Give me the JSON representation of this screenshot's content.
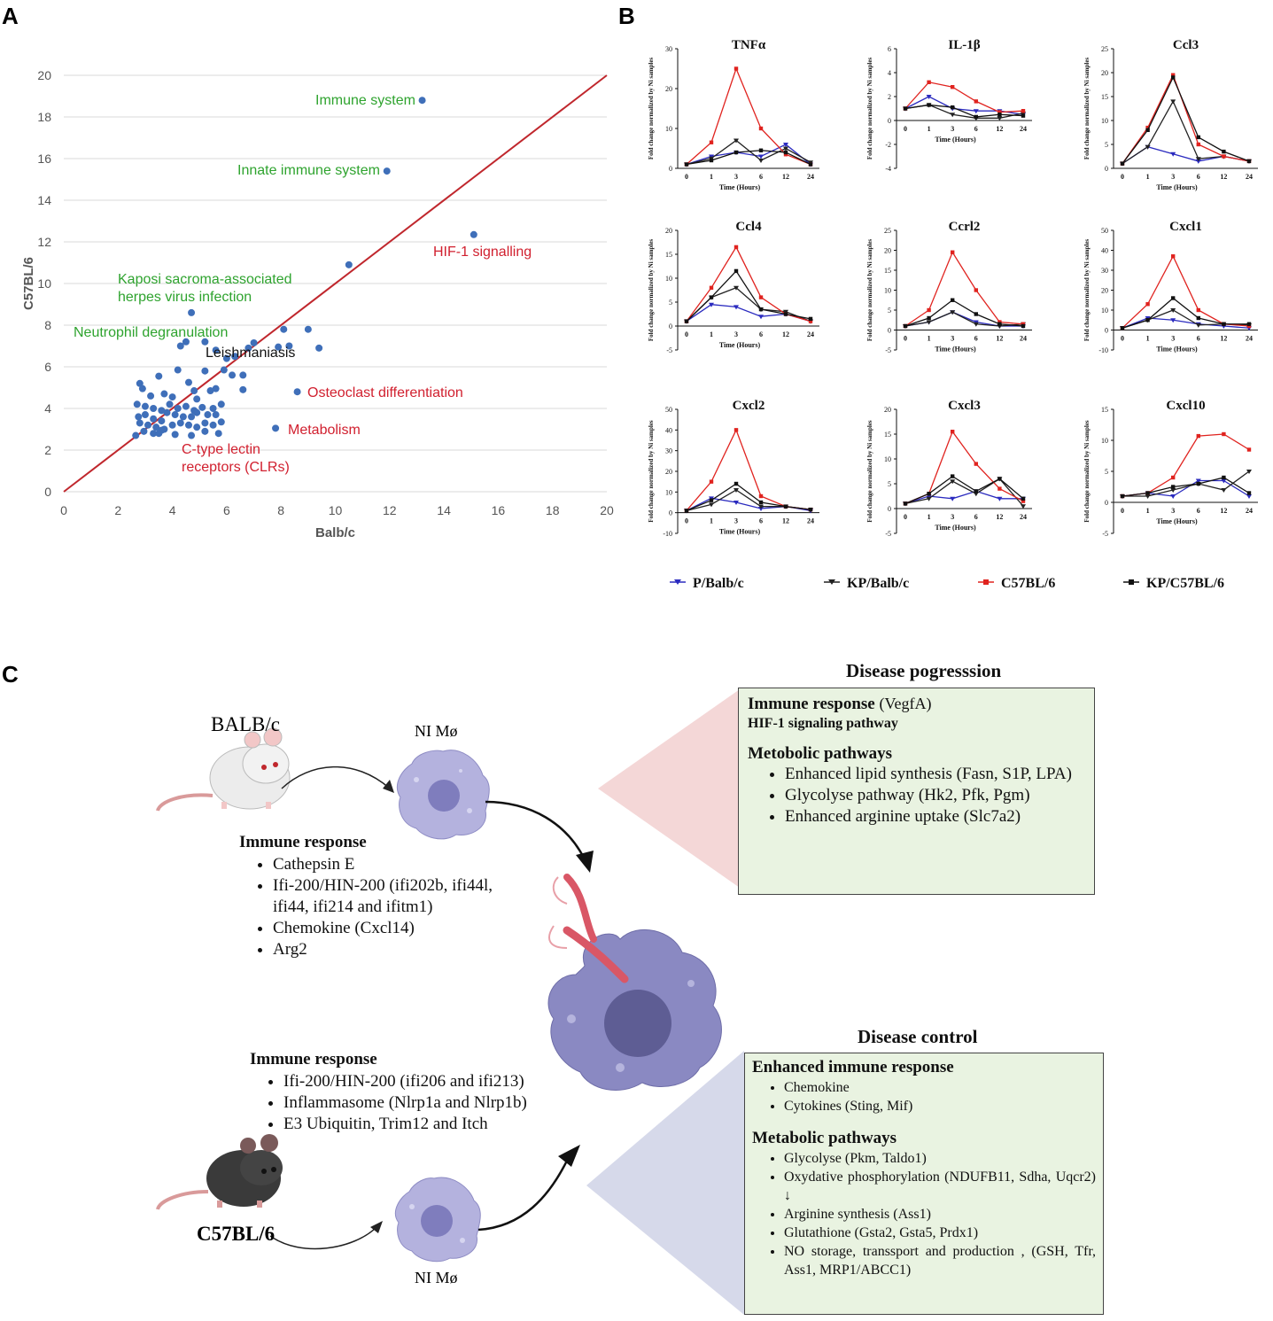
{
  "panels": {
    "a": "A",
    "b": "B",
    "c": "C"
  },
  "chart_data": [
    {
      "type": "scatter",
      "id": "A",
      "xlabel": "Balb/c",
      "ylabel": "C57BL/6",
      "xlim": [
        0,
        20
      ],
      "ylim": [
        0,
        20
      ],
      "xticks": [
        "0",
        "2",
        "4",
        "6",
        "8",
        "10",
        "12",
        "14",
        "16",
        "18",
        "20"
      ],
      "yticks": [
        "0",
        "2",
        "4",
        "6",
        "8",
        "10",
        "12",
        "14",
        "16",
        "18",
        "20"
      ],
      "diagonal": true,
      "point_color": "#3f6fb9",
      "line_color": "#c0272d",
      "points": [
        [
          13.2,
          18.8
        ],
        [
          11.9,
          15.4
        ],
        [
          15.1,
          12.35
        ],
        [
          10.5,
          10.9
        ],
        [
          4.7,
          8.6
        ],
        [
          9.0,
          7.8
        ],
        [
          8.1,
          7.8
        ],
        [
          9.4,
          6.9
        ],
        [
          7.0,
          7.15
        ],
        [
          4.3,
          7.0
        ],
        [
          4.5,
          7.2
        ],
        [
          5.2,
          7.2
        ],
        [
          5.6,
          6.8
        ],
        [
          6.0,
          6.4
        ],
        [
          6.3,
          6.5
        ],
        [
          6.8,
          6.9
        ],
        [
          7.9,
          6.95
        ],
        [
          8.3,
          7.0
        ],
        [
          6.2,
          5.6
        ],
        [
          6.6,
          5.6
        ],
        [
          6.6,
          4.9
        ],
        [
          5.9,
          5.85
        ],
        [
          5.2,
          5.8
        ],
        [
          4.2,
          5.85
        ],
        [
          3.5,
          5.55
        ],
        [
          2.8,
          5.2
        ],
        [
          2.9,
          4.95
        ],
        [
          3.7,
          4.7
        ],
        [
          3.2,
          4.6
        ],
        [
          4.0,
          4.55
        ],
        [
          4.8,
          4.85
        ],
        [
          5.4,
          4.85
        ],
        [
          5.6,
          4.95
        ],
        [
          4.6,
          5.25
        ],
        [
          2.7,
          4.2
        ],
        [
          3.0,
          4.1
        ],
        [
          3.3,
          4.0
        ],
        [
          3.6,
          3.9
        ],
        [
          3.9,
          4.2
        ],
        [
          4.2,
          4.0
        ],
        [
          4.5,
          4.1
        ],
        [
          4.8,
          3.9
        ],
        [
          5.1,
          4.05
        ],
        [
          5.5,
          4.0
        ],
        [
          5.8,
          4.2
        ],
        [
          2.75,
          3.6
        ],
        [
          3.0,
          3.7
        ],
        [
          3.3,
          3.5
        ],
        [
          3.6,
          3.4
        ],
        [
          3.8,
          3.8
        ],
        [
          4.1,
          3.7
        ],
        [
          4.4,
          3.6
        ],
        [
          4.7,
          3.6
        ],
        [
          4.9,
          3.8
        ],
        [
          5.3,
          3.7
        ],
        [
          5.6,
          3.7
        ],
        [
          2.8,
          3.3
        ],
        [
          3.1,
          3.2
        ],
        [
          3.4,
          3.1
        ],
        [
          3.7,
          3.0
        ],
        [
          4.0,
          3.2
        ],
        [
          4.3,
          3.3
        ],
        [
          4.6,
          3.2
        ],
        [
          4.9,
          3.1
        ],
        [
          5.2,
          3.3
        ],
        [
          5.5,
          3.2
        ],
        [
          2.65,
          2.7
        ],
        [
          2.95,
          2.9
        ],
        [
          3.3,
          2.8
        ],
        [
          3.6,
          2.95
        ],
        [
          4.1,
          2.75
        ],
        [
          4.7,
          2.7
        ],
        [
          5.2,
          2.9
        ],
        [
          5.7,
          2.8
        ],
        [
          3.5,
          2.8
        ],
        [
          7.8,
          3.05
        ],
        [
          8.6,
          4.8
        ],
        [
          5.8,
          3.35
        ],
        [
          4.9,
          4.45
        ]
      ],
      "annotations": [
        {
          "text": "Immune system",
          "color": "#2ea32e"
        },
        {
          "text": "Innate immune system",
          "color": "#2ea32e"
        },
        {
          "text": "HIF-1 signalling",
          "color": "#d1202f"
        },
        {
          "text": "Kaposi sacroma-associated",
          "color": "#2ea32e"
        },
        {
          "text": "herpes virus infection",
          "color": "#2ea32e"
        },
        {
          "text": "Neutrophil degranulation",
          "color": "#2ea32e"
        },
        {
          "text": "Leishmaniasis",
          "color": "#111111"
        },
        {
          "text": "Osteoclast differentiation",
          "color": "#d1202f"
        },
        {
          "text": "Metabolism",
          "color": "#d1202f"
        },
        {
          "text": "C-type lectin",
          "color": "#d1202f"
        },
        {
          "text": "receptors (CLRs)",
          "color": "#d1202f"
        }
      ]
    },
    {
      "type": "line",
      "id": "B",
      "x": [
        "0",
        "1",
        "3",
        "6",
        "12",
        "24"
      ],
      "xlabel": "Time (Hours)",
      "ylabel": "Fold change normalized by Ni samples",
      "series_names": [
        "P/Balb/c",
        "KP/Balb/c",
        "C57BL/6",
        "KP/C57BL/6"
      ],
      "series_colors": [
        "#2b2bbf",
        "#222222",
        "#e0231f",
        "#111111"
      ],
      "subplots": [
        {
          "title": "TNFα",
          "ylim": [
            0,
            30
          ],
          "yticks": [
            "0",
            "10",
            "20",
            "30"
          ],
          "series": [
            [
              1,
              3,
              4,
              3,
              6,
              1
            ],
            [
              1,
              2.5,
              7,
              2,
              5,
              1.5
            ],
            [
              1,
              6.5,
              25,
              10,
              3.5,
              1
            ],
            [
              1,
              2,
              4,
              4.5,
              4,
              1
            ]
          ]
        },
        {
          "title": "IL-1β",
          "ylim": [
            -4,
            6
          ],
          "yticks": [
            "-4",
            "-2",
            "0",
            "2",
            "4",
            "6"
          ],
          "series": [
            [
              1,
              2,
              1,
              0.8,
              0.8,
              0.5
            ],
            [
              1,
              1.3,
              0.5,
              0.2,
              0.2,
              0.6
            ],
            [
              1,
              3.2,
              2.8,
              1.6,
              0.7,
              0.8
            ],
            [
              1,
              1.3,
              1.1,
              0.3,
              0.5,
              0.4
            ]
          ]
        },
        {
          "title": "Ccl3",
          "ylim": [
            0,
            25
          ],
          "yticks": [
            "0",
            "5",
            "10",
            "15",
            "20",
            "25"
          ],
          "series": [
            [
              1,
              4.5,
              3,
              1.5,
              2.5,
              1.5
            ],
            [
              1,
              4.5,
              14,
              2,
              2.5,
              1.5
            ],
            [
              1,
              8.5,
              19.5,
              5,
              2.5,
              1.5
            ],
            [
              1,
              8,
              19,
              6.5,
              3.5,
              1.5
            ]
          ]
        },
        {
          "title": "Ccl4",
          "ylim": [
            -5,
            20
          ],
          "yticks": [
            "-5",
            "0",
            "5",
            "10",
            "15",
            "20"
          ],
          "series": [
            [
              1,
              4.5,
              4,
              2,
              2.5,
              1
            ],
            [
              1,
              6,
              8,
              3.5,
              3,
              1
            ],
            [
              1,
              8,
              16.5,
              6,
              2.5,
              1
            ],
            [
              1,
              6,
              11.5,
              3.5,
              2.5,
              1.5
            ]
          ]
        },
        {
          "title": "Ccrl2",
          "ylim": [
            -5,
            25
          ],
          "yticks": [
            "-5",
            "0",
            "5",
            "10",
            "15",
            "20",
            "25"
          ],
          "series": [
            [
              1,
              2,
              4.5,
              2,
              1,
              1
            ],
            [
              1,
              2,
              4.5,
              1.5,
              1,
              1.5
            ],
            [
              1,
              5,
              19.5,
              10,
              2,
              1.5
            ],
            [
              1,
              3,
              7.5,
              4,
              1.5,
              1
            ]
          ]
        },
        {
          "title": "Cxcl1",
          "ylim": [
            -10,
            50
          ],
          "yticks": [
            "-10",
            "0",
            "10",
            "20",
            "30",
            "40",
            "50"
          ],
          "series": [
            [
              1,
              6,
              5,
              3,
              2,
              1
            ],
            [
              1,
              5,
              10,
              2.5,
              3,
              2.5
            ],
            [
              1,
              13,
              37,
              10,
              3,
              2
            ],
            [
              1,
              5,
              16,
              6,
              3,
              3
            ]
          ]
        },
        {
          "title": "Cxcl2",
          "ylim": [
            -10,
            50
          ],
          "yticks": [
            "-10",
            "0",
            "10",
            "20",
            "30",
            "40",
            "50"
          ],
          "series": [
            [
              1,
              7,
              5,
              2,
              3,
              1
            ],
            [
              1,
              4,
              11,
              3,
              3,
              1.5
            ],
            [
              1,
              15,
              40,
              8,
              3,
              1.5
            ],
            [
              1,
              6,
              14,
              5,
              3,
              1.5
            ]
          ]
        },
        {
          "title": "Cxcl3",
          "ylim": [
            -5,
            20
          ],
          "yticks": [
            "-5",
            "0",
            "5",
            "10",
            "15",
            "20"
          ],
          "series": [
            [
              1,
              2.5,
              2,
              3.5,
              2,
              2
            ],
            [
              1,
              2,
              5.5,
              3,
              6,
              0.5
            ],
            [
              1,
              3,
              15.5,
              9,
              4,
              1.5
            ],
            [
              1,
              3,
              6.5,
              3.5,
              6,
              2
            ]
          ]
        },
        {
          "title": "Cxcl10",
          "ylim": [
            -5,
            15
          ],
          "yticks": [
            "-5",
            "0",
            "5",
            "10",
            "15"
          ],
          "series": [
            [
              1,
              1.5,
              1,
              3.5,
              3.5,
              1
            ],
            [
              1,
              1,
              2,
              3,
              2,
              5
            ],
            [
              1,
              1.5,
              4,
              10.7,
              11,
              8.5
            ],
            [
              1,
              1.5,
              2.5,
              3,
              4,
              1.5
            ]
          ]
        }
      ]
    }
  ],
  "panel_c": {
    "progression_title": "Disease pogresssion",
    "progression": {
      "immune_heading": "Immune response",
      "immune_detail": "(VegfA)",
      "hif": "HIF-1 signaling pathway",
      "metabolic_heading": "Metobolic pathways",
      "items": [
        "Enhanced lipid synthesis (Fasn, S1P, LPA)",
        "Glycolyse pathway (Hk2, Pfk, Pgm)",
        "Enhanced arginine uptake (Slc7a2)"
      ]
    },
    "balb_label": "BALB/c",
    "ni_label_top": "NI Mø",
    "ni_label_bottom": "NI Mø",
    "c57_label": "C57BL/6",
    "balb_immune_heading": "Immune response",
    "balb_items": [
      "Cathepsin E",
      "Ifi-200/HIN-200 (ifi202b, ifi44l, ifi44, ifi214 and ifitm1)",
      "Chemokine (Cxcl14)",
      "Arg2"
    ],
    "c57_immune_heading": "Immune response",
    "c57_items": [
      "Ifi-200/HIN-200 (ifi206 and ifi213)",
      "Inflammasome (Nlrp1a and Nlrp1b)",
      "E3 Ubiquitin, Trim12 and Itch"
    ],
    "control_title": "Disease control",
    "control": {
      "immune_heading": "Enhanced immune response",
      "immune_items": [
        "Chemokine",
        "Cytokines (Sting, Mif)"
      ],
      "metabolic_heading": "Metabolic pathways",
      "items": [
        "Glycolyse (Pkm, Taldo1)",
        "Oxydative phosphorylation (NDUFB11, Sdha, Uqcr2)",
        "Arginine synthesis (Ass1)",
        "Glutathione (Gsta2, Gsta5, Prdx1)",
        "NO storage, transsport and production , (GSH, Tfr, Ass1, MRP1/ABCC1)"
      ],
      "down_arrow": "↓"
    }
  }
}
